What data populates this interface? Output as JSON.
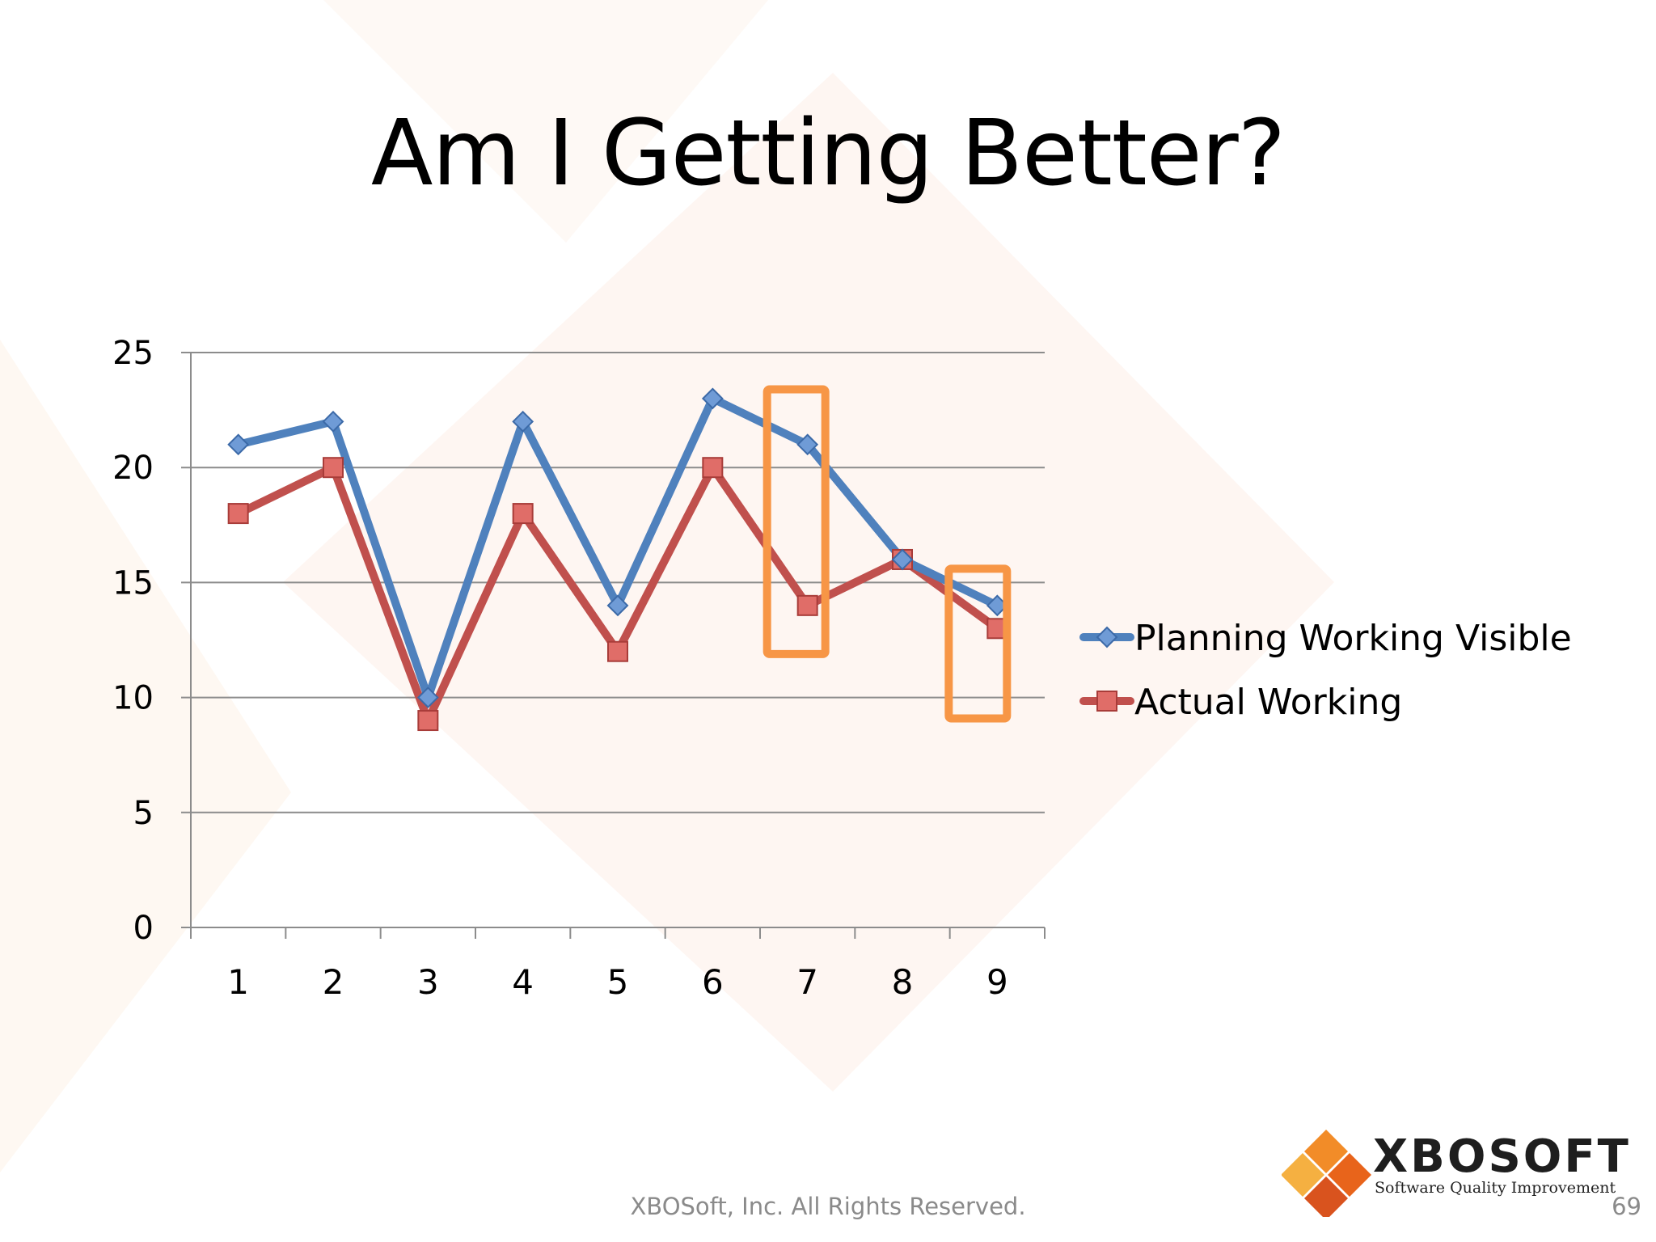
{
  "slide": {
    "title": "Am I Getting Better?",
    "footer": "XBOSoft, Inc. All Rights Reserved.",
    "page_number": "69"
  },
  "logo": {
    "name": "XBOSOFT",
    "tagline": "Software Quality Improvement",
    "colors": [
      "#f28c28",
      "#e8641b",
      "#f5b041",
      "#d9531e"
    ]
  },
  "chart_data": {
    "type": "line",
    "title": "",
    "xlabel": "",
    "ylabel": "",
    "categories": [
      "1",
      "2",
      "3",
      "4",
      "5",
      "6",
      "7",
      "8",
      "9"
    ],
    "ylim": [
      0,
      25
    ],
    "yticks": [
      0,
      5,
      10,
      15,
      20,
      25
    ],
    "grid": true,
    "legend_position": "right",
    "series": [
      {
        "name": "Planning Working Visible",
        "values": [
          21,
          22,
          10,
          22,
          14,
          23,
          21,
          16,
          14
        ],
        "color": "#4f81bd",
        "marker": "diamond"
      },
      {
        "name": "Actual Working",
        "values": [
          18,
          20,
          9,
          18,
          12,
          20,
          14,
          16,
          13
        ],
        "color": "#c0504d",
        "marker": "square"
      }
    ],
    "highlights": [
      {
        "category": "7",
        "color": "#f79646"
      },
      {
        "category": "9",
        "color": "#f79646"
      }
    ]
  }
}
